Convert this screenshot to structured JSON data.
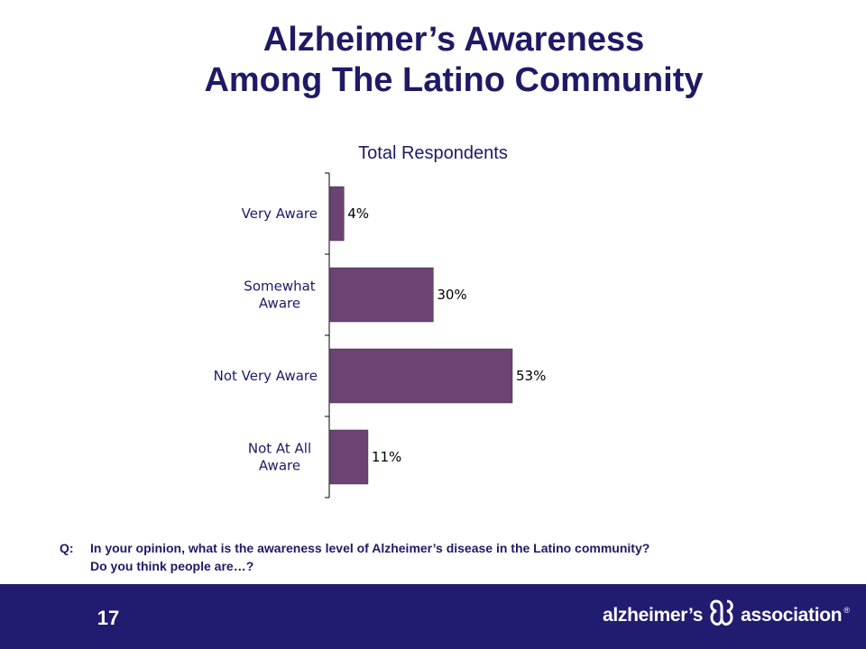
{
  "slide": {
    "title_line1": "Alzheimer’s Awareness",
    "title_line2": "Among The Latino Community",
    "question_prefix": "Q:",
    "question_line1": "In your opinion, what is the awareness level of Alzheimer’s disease in the Latino community?",
    "question_line2": "Do you think people are…?",
    "page_number": "17"
  },
  "logo": {
    "text_left": "alzheimer’s",
    "text_right": "association",
    "registered": "®",
    "icon": "alzheimers-association-logo-icon"
  },
  "colors": {
    "title": "#1f1a66",
    "bar": "#6b4473",
    "footer": "#211c70"
  },
  "chart_data": {
    "type": "bar",
    "orientation": "horizontal",
    "title": "Total Respondents",
    "categories": [
      [
        "Very Aware"
      ],
      [
        "Somewhat",
        "Aware"
      ],
      [
        "Not Very Aware"
      ],
      [
        "Not At All",
        "Aware"
      ]
    ],
    "values": [
      4,
      30,
      53,
      11
    ],
    "value_labels": [
      "4%",
      "30%",
      "53%",
      "11%"
    ],
    "xlim": [
      0,
      100
    ],
    "grid": false,
    "legend": "none"
  }
}
